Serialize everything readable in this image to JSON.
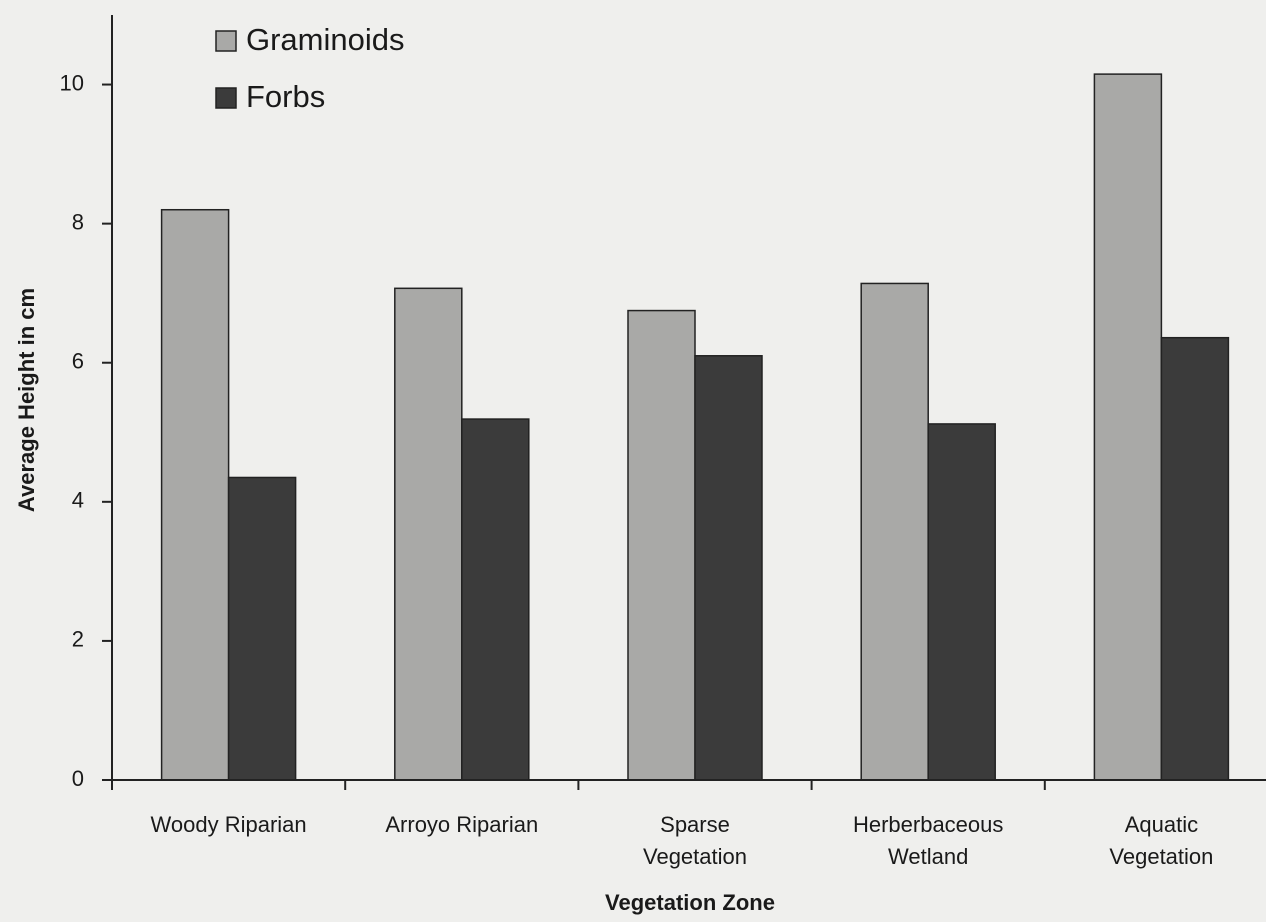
{
  "chart_data": {
    "type": "bar",
    "x_label": "Vegetation Zone",
    "y_label": "Average Height in cm",
    "categories": [
      [
        "Woody Riparian"
      ],
      [
        "Arroyo Riparian"
      ],
      [
        "Sparse",
        "Vegetation"
      ],
      [
        "Herberbaceous",
        "Wetland"
      ],
      [
        "Aquatic",
        "Vegetation"
      ]
    ],
    "series": [
      {
        "name": "Graminoids",
        "color": "#a9a9a7",
        "values": [
          8.2,
          7.07,
          6.75,
          7.14,
          10.15
        ]
      },
      {
        "name": "Forbs",
        "color": "#3b3b3b",
        "values": [
          4.35,
          5.19,
          6.1,
          5.12,
          6.36
        ]
      }
    ],
    "ylim": [
      0,
      11
    ],
    "yticks": [
      0,
      2,
      4,
      6,
      8,
      10
    ],
    "grid": false,
    "legend": "top-left"
  }
}
